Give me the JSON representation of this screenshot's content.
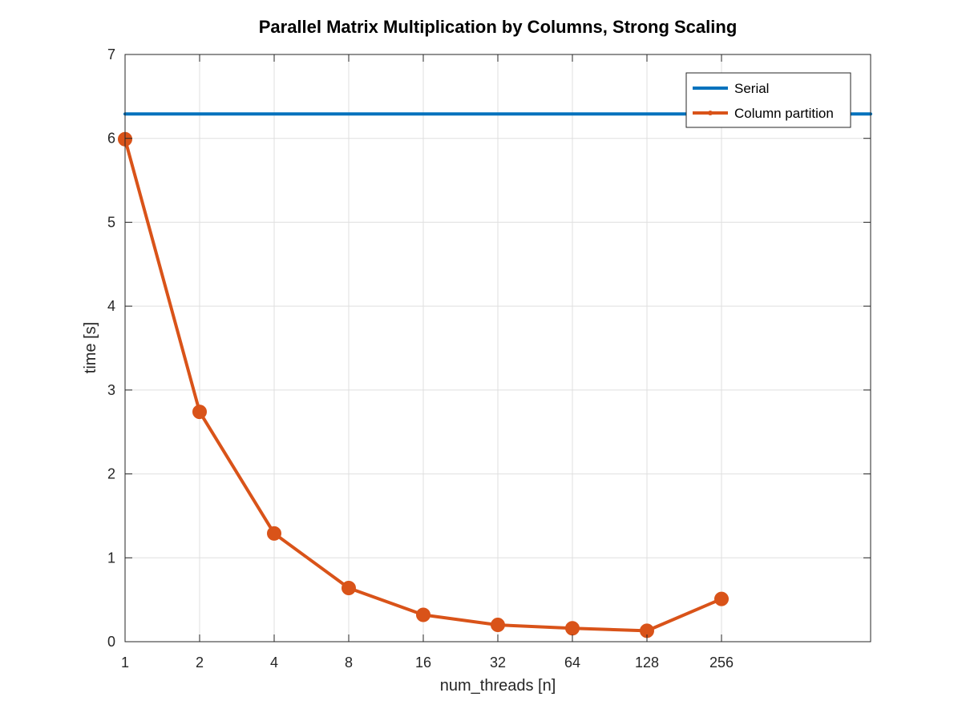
{
  "chart_data": {
    "type": "line",
    "title": "Parallel Matrix Multiplication by Columns, Strong Scaling",
    "xlabel": "num_threads [n]",
    "ylabel": "time [s]",
    "x_scale": "log2",
    "x_ticks": [
      1,
      2,
      4,
      8,
      16,
      32,
      64,
      128,
      256
    ],
    "x_tick_labels": [
      "1",
      "2",
      "4",
      "8",
      "16",
      "32",
      "64",
      "128",
      "256"
    ],
    "xlim": [
      1,
      1024
    ],
    "ylim": [
      0,
      7
    ],
    "y_ticks": [
      0,
      1,
      2,
      3,
      4,
      5,
      6,
      7
    ],
    "y_tick_labels": [
      "0",
      "1",
      "2",
      "3",
      "4",
      "5",
      "6",
      "7"
    ],
    "grid": true,
    "legend_position": "top-right",
    "series": [
      {
        "name": "Serial",
        "color": "#0072BD",
        "markers": false,
        "x": [
          1,
          1024
        ],
        "y": [
          6.29,
          6.29
        ]
      },
      {
        "name": "Column partition",
        "color": "#D95319",
        "markers": true,
        "x": [
          1,
          2,
          4,
          8,
          16,
          32,
          64,
          128,
          256
        ],
        "y": [
          5.99,
          2.74,
          1.29,
          0.64,
          0.32,
          0.2,
          0.16,
          0.13,
          0.51
        ]
      }
    ]
  }
}
